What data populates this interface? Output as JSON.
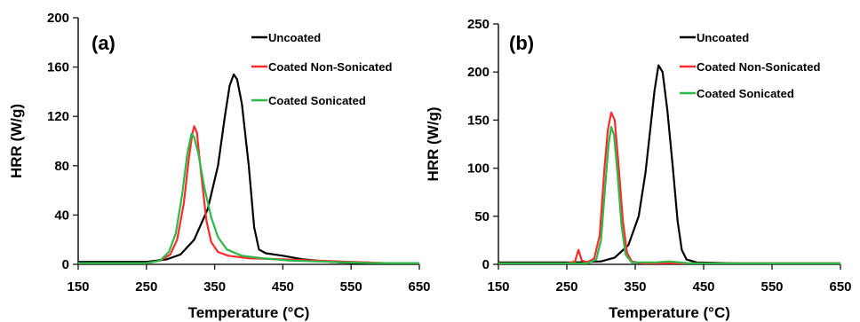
{
  "chart_data": [
    {
      "type": "line",
      "panel_label": "(a)",
      "xlabel": "Temperature (°C)",
      "ylabel": "HRR (W/g)",
      "xlim": [
        150,
        650
      ],
      "ylim": [
        0,
        200
      ],
      "xticks": [
        150,
        250,
        350,
        450,
        550,
        650
      ],
      "yticks": [
        0,
        40,
        80,
        120,
        160,
        200
      ],
      "grid": false,
      "legend_position": "top-right",
      "series": [
        {
          "name": "Uncoated",
          "color": "#000000",
          "points": [
            [
              150,
              2
            ],
            [
              250,
              2
            ],
            [
              280,
              4
            ],
            [
              300,
              8
            ],
            [
              320,
              20
            ],
            [
              340,
              45
            ],
            [
              355,
              80
            ],
            [
              365,
              120
            ],
            [
              372,
              145
            ],
            [
              378,
              154
            ],
            [
              383,
              150
            ],
            [
              390,
              130
            ],
            [
              400,
              80
            ],
            [
              408,
              30
            ],
            [
              415,
              12
            ],
            [
              425,
              9
            ],
            [
              450,
              7
            ],
            [
              480,
              4
            ],
            [
              520,
              2
            ],
            [
              560,
              1
            ],
            [
              600,
              1
            ],
            [
              650,
              1
            ]
          ]
        },
        {
          "name": "Coated Non-Sonicated",
          "color": "#ff2a2a",
          "points": [
            [
              150,
              1
            ],
            [
              250,
              1
            ],
            [
              270,
              3
            ],
            [
              285,
              8
            ],
            [
              295,
              20
            ],
            [
              305,
              50
            ],
            [
              312,
              85
            ],
            [
              317,
              105
            ],
            [
              320,
              112
            ],
            [
              324,
              107
            ],
            [
              330,
              75
            ],
            [
              338,
              35
            ],
            [
              345,
              18
            ],
            [
              355,
              10
            ],
            [
              370,
              7
            ],
            [
              400,
              5
            ],
            [
              450,
              4
            ],
            [
              500,
              3
            ],
            [
              550,
              2
            ],
            [
              600,
              1
            ],
            [
              650,
              1
            ]
          ]
        },
        {
          "name": "Coated Sonicated",
          "color": "#2db84a",
          "points": [
            [
              150,
              1
            ],
            [
              250,
              1
            ],
            [
              270,
              3
            ],
            [
              283,
              10
            ],
            [
              293,
              25
            ],
            [
              302,
              55
            ],
            [
              310,
              90
            ],
            [
              316,
              106
            ],
            [
              320,
              103
            ],
            [
              326,
              90
            ],
            [
              335,
              62
            ],
            [
              345,
              38
            ],
            [
              355,
              22
            ],
            [
              368,
              12
            ],
            [
              390,
              7
            ],
            [
              420,
              5
            ],
            [
              460,
              3
            ],
            [
              520,
              2
            ],
            [
              580,
              1
            ],
            [
              650,
              1
            ]
          ]
        }
      ]
    },
    {
      "type": "line",
      "panel_label": "(b)",
      "xlabel": "Temperature (°C)",
      "ylabel": "HRR (W/g)",
      "xlim": [
        150,
        650
      ],
      "ylim": [
        0,
        250
      ],
      "xticks": [
        150,
        250,
        350,
        450,
        550,
        650
      ],
      "yticks": [
        0,
        50,
        100,
        150,
        200,
        250
      ],
      "grid": false,
      "legend_position": "top-right",
      "series": [
        {
          "name": "Uncoated",
          "color": "#000000",
          "points": [
            [
              150,
              2
            ],
            [
              260,
              2
            ],
            [
              300,
              3
            ],
            [
              320,
              7
            ],
            [
              340,
              20
            ],
            [
              355,
              50
            ],
            [
              365,
              95
            ],
            [
              372,
              140
            ],
            [
              378,
              180
            ],
            [
              384,
              207
            ],
            [
              390,
              200
            ],
            [
              397,
              160
            ],
            [
              405,
              100
            ],
            [
              412,
              45
            ],
            [
              418,
              15
            ],
            [
              425,
              5
            ],
            [
              440,
              2
            ],
            [
              500,
              1
            ],
            [
              650,
              1
            ]
          ]
        },
        {
          "name": "Coated Non-Sonicated",
          "color": "#ff2a2a",
          "points": [
            [
              150,
              1
            ],
            [
              250,
              1
            ],
            [
              262,
              3
            ],
            [
              267,
              15
            ],
            [
              272,
              4
            ],
            [
              280,
              2
            ],
            [
              290,
              6
            ],
            [
              298,
              30
            ],
            [
              305,
              100
            ],
            [
              310,
              140
            ],
            [
              315,
              158
            ],
            [
              320,
              150
            ],
            [
              326,
              100
            ],
            [
              332,
              45
            ],
            [
              338,
              12
            ],
            [
              345,
              3
            ],
            [
              360,
              1
            ],
            [
              650,
              1
            ]
          ]
        },
        {
          "name": "Coated Sonicated",
          "color": "#2db84a",
          "points": [
            [
              150,
              1
            ],
            [
              280,
              1
            ],
            [
              293,
              5
            ],
            [
              300,
              25
            ],
            [
              306,
              80
            ],
            [
              311,
              125
            ],
            [
              315,
              143
            ],
            [
              319,
              135
            ],
            [
              324,
              95
            ],
            [
              330,
              40
            ],
            [
              336,
              10
            ],
            [
              345,
              2
            ],
            [
              380,
              2
            ],
            [
              400,
              3
            ],
            [
              430,
              1
            ],
            [
              650,
              1
            ]
          ]
        }
      ]
    }
  ]
}
